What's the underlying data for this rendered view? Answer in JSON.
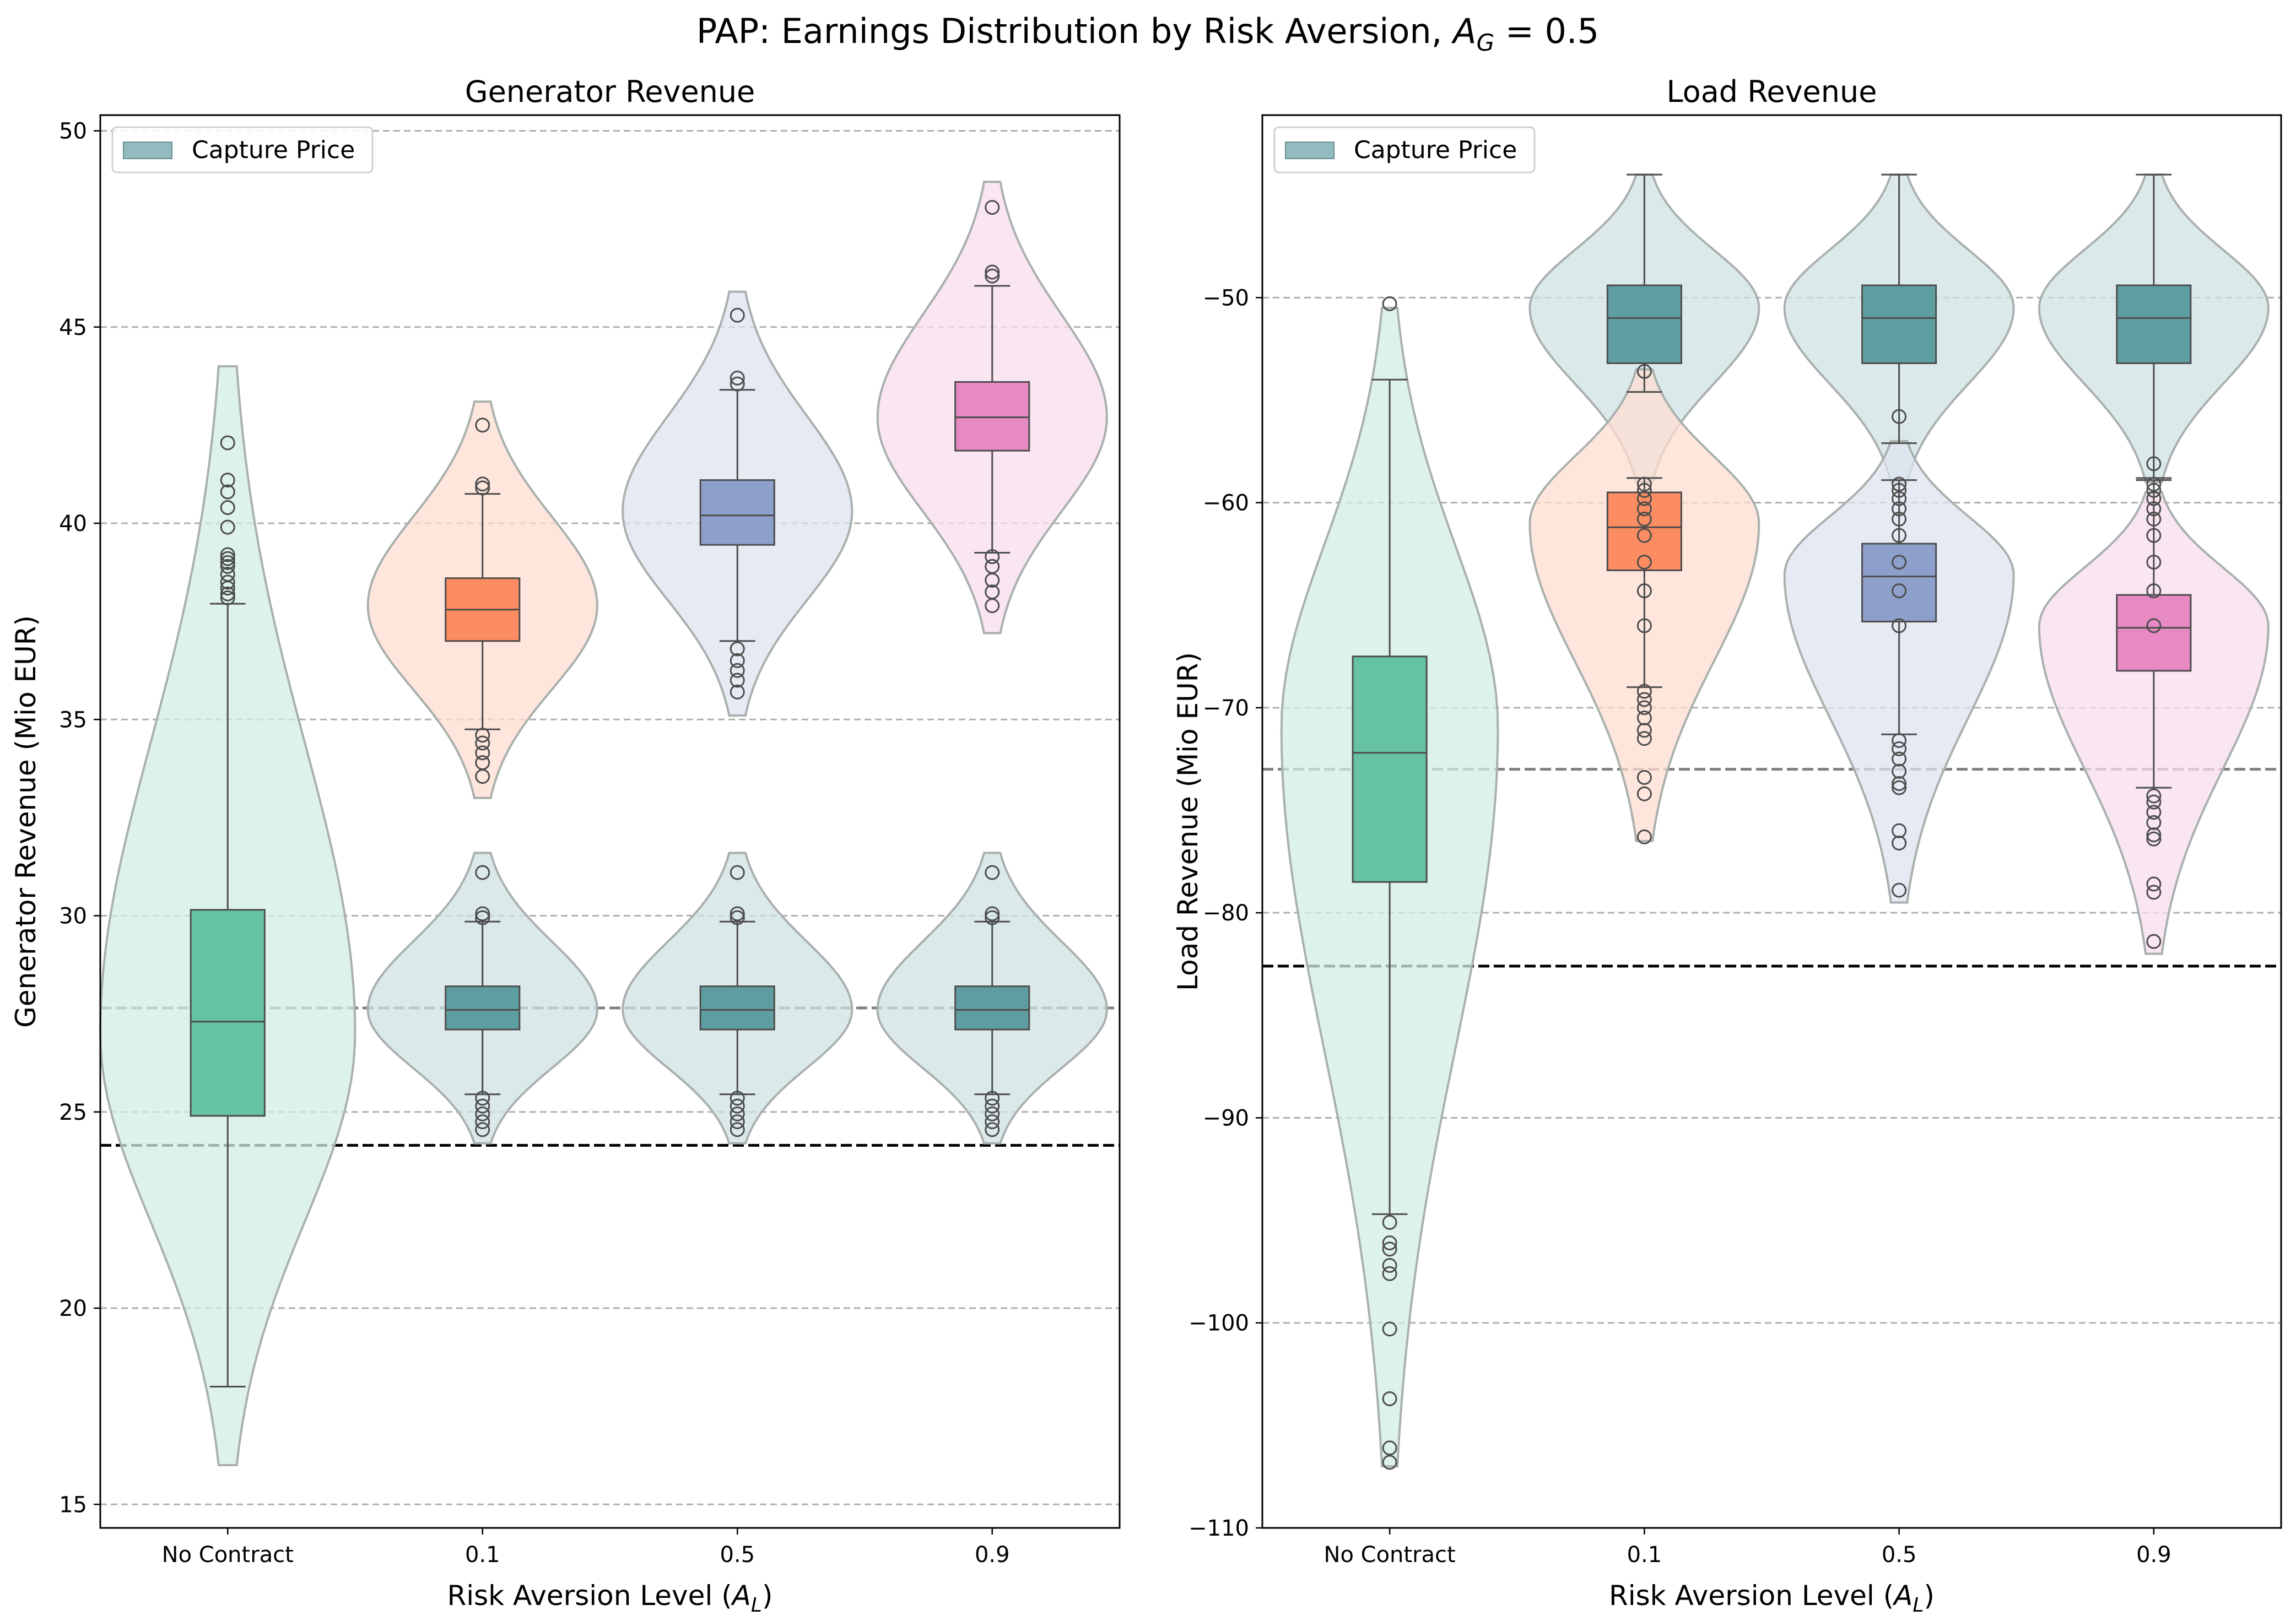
{
  "suptitle": {
    "prefix": "PAP: Earnings Distribution by Risk Aversion, ",
    "var": "A",
    "sub": "G",
    "suffix": " = 0.5"
  },
  "chart_data": [
    {
      "type": "violin+box",
      "title": "Generator Revenue",
      "ylabel": "Generator Revenue (Mio EUR)",
      "xlabel": {
        "prefix": "Risk Aversion Level (",
        "var": "A",
        "sub": "L",
        "suffix": ")"
      },
      "categories": [
        "No Contract",
        "0.1",
        "0.5",
        "0.9"
      ],
      "ylim": [
        14.4,
        50.4
      ],
      "yticks": [
        15,
        20,
        25,
        30,
        35,
        40,
        45,
        50
      ],
      "grid": "y-dashed",
      "legend": {
        "label": "Capture Price",
        "color": "#6ea4aa",
        "position": "top-left"
      },
      "hlines": [
        {
          "y": 27.65,
          "color": "#808080"
        },
        {
          "y": 24.15,
          "color": "#000000"
        }
      ],
      "series": [
        {
          "category": "No Contract",
          "color": "#66c2a5",
          "violin": {
            "min": 16.0,
            "max": 44.0,
            "peak": 27.0,
            "width": 1.0
          },
          "box": {
            "whislo": 18.0,
            "q1": 24.9,
            "med": 27.3,
            "q3": 30.15,
            "whishi": 37.95
          },
          "fliers": [
            38.1,
            38.2,
            38.35,
            38.5,
            38.7,
            38.9,
            39.0,
            39.1,
            39.2,
            39.9,
            40.4,
            40.8,
            41.1,
            42.05
          ]
        },
        {
          "category": "0.1",
          "color": "#fc8d62",
          "violin": {
            "min": 33.0,
            "max": 43.1,
            "peak": 37.9,
            "width": 0.9
          },
          "box": {
            "whislo": 34.75,
            "q1": 37.0,
            "med": 37.8,
            "q3": 38.6,
            "whishi": 40.75
          },
          "fliers": [
            33.55,
            33.9,
            34.15,
            34.4,
            34.6,
            40.9,
            41.0,
            42.5
          ]
        },
        {
          "category": "0.1",
          "color": "#5f9ea0",
          "violin": {
            "min": 24.2,
            "max": 31.6,
            "peak": 27.6,
            "width": 0.9
          },
          "box": {
            "whislo": 25.45,
            "q1": 27.1,
            "med": 27.6,
            "q3": 28.2,
            "whishi": 29.85
          },
          "fliers": [
            24.55,
            24.75,
            24.95,
            25.15,
            25.35,
            29.95,
            30.05,
            31.1
          ]
        },
        {
          "category": "0.5",
          "color": "#8da0cb",
          "violin": {
            "min": 35.1,
            "max": 45.9,
            "peak": 40.3,
            "width": 0.9
          },
          "box": {
            "whislo": 37.0,
            "q1": 39.45,
            "med": 40.2,
            "q3": 41.1,
            "whishi": 43.4
          },
          "fliers": [
            35.7,
            36.0,
            36.25,
            36.5,
            36.8,
            43.55,
            43.7,
            45.3
          ]
        },
        {
          "category": "0.5",
          "color": "#5f9ea0",
          "violin": {
            "min": 24.2,
            "max": 31.6,
            "peak": 27.6,
            "width": 0.9
          },
          "box": {
            "whislo": 25.45,
            "q1": 27.1,
            "med": 27.6,
            "q3": 28.2,
            "whishi": 29.85
          },
          "fliers": [
            24.55,
            24.75,
            24.95,
            25.15,
            25.35,
            29.95,
            30.05,
            31.1
          ]
        },
        {
          "category": "0.9",
          "color": "#e78ac3",
          "violin": {
            "min": 37.2,
            "max": 48.7,
            "peak": 42.7,
            "width": 0.9
          },
          "box": {
            "whislo": 39.25,
            "q1": 41.85,
            "med": 42.7,
            "q3": 43.6,
            "whishi": 46.05
          },
          "fliers": [
            37.9,
            38.25,
            38.55,
            38.9,
            39.15,
            46.3,
            46.4,
            48.05
          ]
        },
        {
          "category": "0.9",
          "color": "#5f9ea0",
          "violin": {
            "min": 24.2,
            "max": 31.6,
            "peak": 27.6,
            "width": 0.9
          },
          "box": {
            "whislo": 25.45,
            "q1": 27.1,
            "med": 27.6,
            "q3": 28.2,
            "whishi": 29.85
          },
          "fliers": [
            24.55,
            24.75,
            24.95,
            25.15,
            25.35,
            29.95,
            30.05,
            31.1
          ]
        }
      ]
    },
    {
      "type": "violin+box",
      "title": "Load Revenue",
      "ylabel": "Load Revenue (Mio EUR)",
      "xlabel": {
        "prefix": "Risk Aversion Level (",
        "var": "A",
        "sub": "L",
        "suffix": ")"
      },
      "categories": [
        "No Contract",
        "0.1",
        "0.5",
        "0.9"
      ],
      "ylim": [
        -110,
        -41.1
      ],
      "yticks": [
        -110,
        -100,
        -90,
        -80,
        -70,
        -60,
        -50
      ],
      "grid": "y-dashed",
      "legend": {
        "label": "Capture Price",
        "color": "#6ea4aa",
        "position": "top-left"
      },
      "hlines": [
        {
          "y": -73.0,
          "color": "#808080"
        },
        {
          "y": -82.6,
          "color": "#000000"
        }
      ],
      "series": [
        {
          "category": "No Contract",
          "color": "#66c2a5",
          "violin": {
            "min": -107.0,
            "max": -50.5,
            "peak": -71.0,
            "width": 0.85
          },
          "box": {
            "whislo": -94.7,
            "q1": -78.5,
            "med": -72.2,
            "q3": -67.5,
            "whishi": -54.0
          },
          "fliers": [
            -95.1,
            -96.1,
            -96.4,
            -97.2,
            -97.6,
            -100.3,
            -103.7,
            -106.1,
            -106.8,
            -50.3
          ]
        },
        {
          "category": "0.1",
          "color": "#5f9ea0",
          "violin": {
            "min": -59.0,
            "max": -44.0,
            "peak": -50.5,
            "width": 0.9
          },
          "box": {
            "whislo": -54.6,
            "q1": -53.2,
            "med": -51.0,
            "q3": -49.4,
            "whishi": -44.0
          },
          "fliers": [
            -53.6
          ]
        },
        {
          "category": "0.1",
          "color": "#fc8d62",
          "violin": {
            "min": -76.5,
            "max": -53.5,
            "peak": -61.0,
            "width": 0.9
          },
          "box": {
            "whislo": -69.0,
            "q1": -63.3,
            "med": -61.2,
            "q3": -59.5,
            "whishi": -58.8
          },
          "fliers": [
            -59.1,
            -59.4,
            -59.8,
            -60.3,
            -60.8,
            -61.6,
            -62.9,
            -64.3,
            -66.0,
            -69.2,
            -69.6,
            -70.0,
            -70.5,
            -71.1,
            -71.5,
            -73.4,
            -74.2,
            -76.3
          ]
        },
        {
          "category": "0.5",
          "color": "#5f9ea0",
          "violin": {
            "min": -59.0,
            "max": -44.0,
            "peak": -50.5,
            "width": 0.9
          },
          "box": {
            "whislo": -57.1,
            "q1": -53.2,
            "med": -51.0,
            "q3": -49.4,
            "whishi": -44.0
          },
          "fliers": [
            -55.8
          ]
        },
        {
          "category": "0.5",
          "color": "#8da0cb",
          "violin": {
            "min": -79.5,
            "max": -57.0,
            "peak": -63.5,
            "width": 0.9
          },
          "box": {
            "whislo": -71.3,
            "q1": -65.8,
            "med": -63.6,
            "q3": -62.0,
            "whishi": -58.9
          },
          "fliers": [
            -59.1,
            -59.4,
            -59.8,
            -60.3,
            -60.8,
            -61.6,
            -62.9,
            -64.3,
            -66.0,
            -71.6,
            -72.0,
            -72.5,
            -73.1,
            -73.7,
            -73.9,
            -76.0,
            -76.6,
            -78.9
          ]
        },
        {
          "category": "0.9",
          "color": "#5f9ea0",
          "violin": {
            "min": -59.0,
            "max": -44.0,
            "peak": -50.5,
            "width": 0.9
          },
          "box": {
            "whislo": -58.8,
            "q1": -53.2,
            "med": -51.0,
            "q3": -49.4,
            "whishi": -44.0
          },
          "fliers": [
            -58.1
          ]
        },
        {
          "category": "0.9",
          "color": "#e78ac3",
          "violin": {
            "min": -82.0,
            "max": -59.5,
            "peak": -66.0,
            "width": 0.9
          },
          "box": {
            "whislo": -73.9,
            "q1": -68.2,
            "med": -66.1,
            "q3": -64.5,
            "whishi": -58.9
          },
          "fliers": [
            -59.1,
            -59.4,
            -59.8,
            -60.3,
            -60.8,
            -61.6,
            -62.9,
            -64.3,
            -66.0,
            -74.3,
            -74.6,
            -75.1,
            -75.6,
            -76.2,
            -76.4,
            -78.6,
            -79.0,
            -81.4
          ]
        }
      ]
    }
  ]
}
